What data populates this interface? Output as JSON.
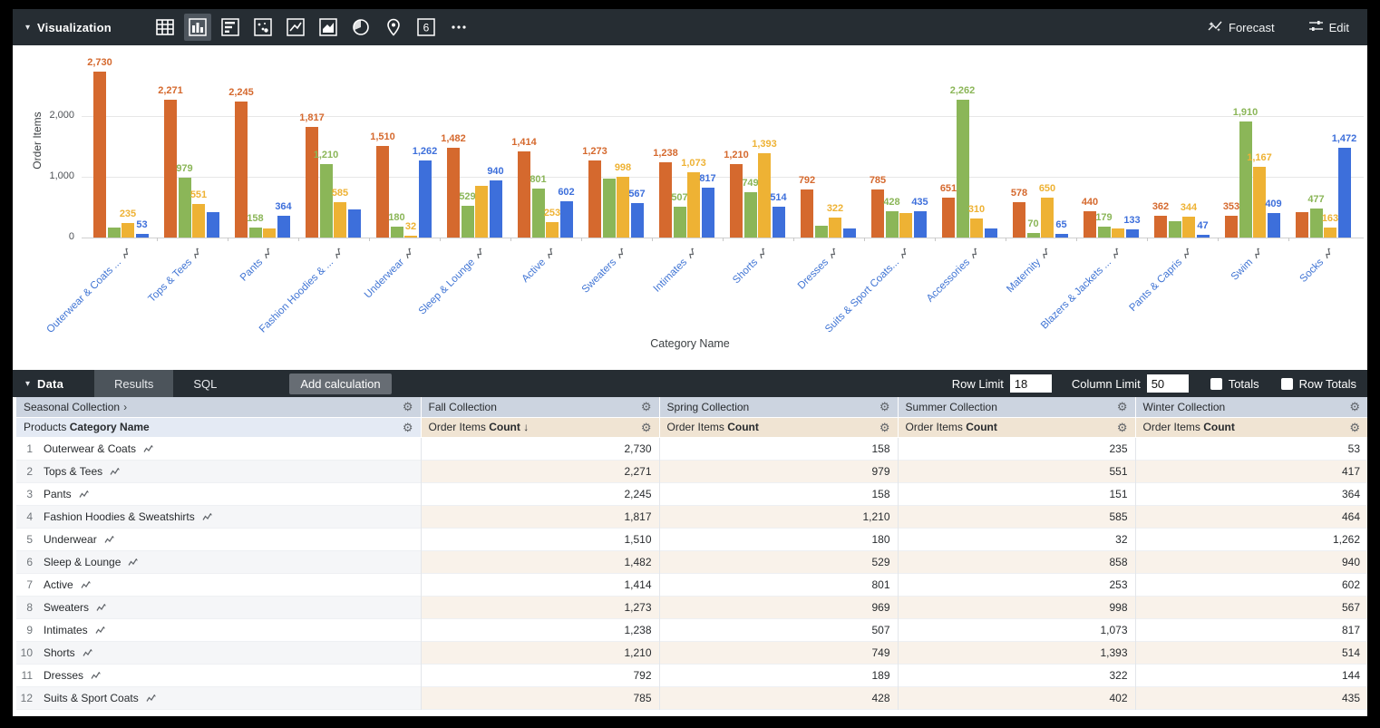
{
  "viz_toolbar": {
    "title": "Visualization",
    "icons": [
      {
        "name": "table-icon",
        "glyph": "table",
        "active": false
      },
      {
        "name": "column-chart-icon",
        "glyph": "column",
        "active": true
      },
      {
        "name": "bar-chart-icon",
        "glyph": "hbar",
        "active": false
      },
      {
        "name": "scatter-plot-icon",
        "glyph": "scatter",
        "active": false
      },
      {
        "name": "line-chart-icon",
        "glyph": "line",
        "active": false
      },
      {
        "name": "area-chart-icon",
        "glyph": "area",
        "active": false
      },
      {
        "name": "pie-chart-icon",
        "glyph": "pie",
        "active": false
      },
      {
        "name": "map-icon",
        "glyph": "pin",
        "active": false
      },
      {
        "name": "single-value-icon",
        "glyph": "six",
        "active": false
      },
      {
        "name": "more-vis-icon",
        "glyph": "more",
        "active": false
      }
    ],
    "forecast_label": "Forecast",
    "edit_label": "Edit"
  },
  "chart_data": {
    "type": "bar",
    "title": "",
    "xlabel": "Category Name",
    "ylabel": "Order Items",
    "ylim": [
      0,
      3100
    ],
    "yticks": [
      {
        "value": 0,
        "label": "0"
      },
      {
        "value": 1000,
        "label": "1,000"
      },
      {
        "value": 2000,
        "label": "2,000"
      }
    ],
    "grid": true,
    "legend_position": "none",
    "categories": [
      "Outerwear & Coats ...",
      "Tops & Tees",
      "Pants",
      "Fashion Hoodies & ...",
      "Underwear",
      "Sleep & Lounge",
      "Active",
      "Sweaters",
      "Intimates",
      "Shorts",
      "Dresses",
      "Suits & Sport Coats...",
      "Accessories",
      "Maternity",
      "Blazers & Jackets ...",
      "Pants & Capris",
      "Swim",
      "Socks"
    ],
    "series": [
      {
        "name": "Fall Collection",
        "color": "#d5692e",
        "values": [
          2730,
          2271,
          2245,
          1817,
          1510,
          1482,
          1414,
          1273,
          1238,
          1210,
          792,
          785,
          651,
          578,
          440,
          362,
          353,
          420
        ],
        "labels": [
          "2,730",
          "2,271",
          "2,245",
          "1,817",
          "1,510",
          "1,482",
          "1,414",
          "1,273",
          "1,238",
          "1,210",
          "792",
          "785",
          "651",
          "578",
          "440",
          "362",
          "353",
          null
        ]
      },
      {
        "name": "Spring Collection",
        "color": "#8bb658",
        "values": [
          158,
          979,
          158,
          1210,
          180,
          529,
          801,
          969,
          507,
          749,
          189,
          428,
          2262,
          70,
          179,
          270,
          1910,
          477
        ],
        "labels": [
          null,
          "979",
          "158",
          "1,210",
          "180",
          "529",
          "801",
          null,
          "507",
          "749",
          null,
          "428",
          "2,262",
          "70",
          "179",
          null,
          "1,910",
          "477"
        ]
      },
      {
        "name": "Summer Collection",
        "color": "#eeb234",
        "values": [
          235,
          551,
          151,
          585,
          32,
          858,
          253,
          998,
          1073,
          1393,
          322,
          402,
          310,
          650,
          150,
          344,
          1167,
          163
        ],
        "labels": [
          "235",
          "551",
          null,
          "585",
          "32",
          null,
          "253",
          "998",
          "1,073",
          "1,393",
          "322",
          null,
          "310",
          "650",
          null,
          "344",
          "1,167",
          "163"
        ]
      },
      {
        "name": "Winter Collection",
        "color": "#3d6fdb",
        "values": [
          53,
          417,
          364,
          464,
          1262,
          940,
          602,
          567,
          817,
          514,
          144,
          435,
          150,
          65,
          133,
          47,
          409,
          1472
        ],
        "labels": [
          "53",
          null,
          "364",
          null,
          "1,262",
          "940",
          "602",
          "567",
          "817",
          "514",
          null,
          "435",
          null,
          "65",
          "133",
          "47",
          "409",
          "1,472"
        ]
      }
    ]
  },
  "data_bar": {
    "title": "Data",
    "tabs": [
      {
        "label": "Results",
        "active": true
      },
      {
        "label": "SQL",
        "active": false
      }
    ],
    "add_calculation_label": "Add calculation",
    "row_limit_label": "Row Limit",
    "row_limit_value": "18",
    "column_limit_label": "Column Limit",
    "column_limit_value": "50",
    "totals_label": "Totals",
    "row_totals_label": "Row Totals"
  },
  "table": {
    "pivot_dimension_header": "Seasonal Collection",
    "dimension_header_prefix": "Products",
    "dimension_header_name": "Category Name",
    "measure_header_prefix": "Order Items",
    "measure_header_name": "Count",
    "sort_arrow": "↓",
    "pivot_values": [
      "Fall Collection",
      "Spring Collection",
      "Summer Collection",
      "Winter Collection"
    ],
    "rows": [
      {
        "num": "1",
        "name": "Outerwear & Coats",
        "values": [
          "2,730",
          "158",
          "235",
          "53"
        ]
      },
      {
        "num": "2",
        "name": "Tops & Tees",
        "values": [
          "2,271",
          "979",
          "551",
          "417"
        ]
      },
      {
        "num": "3",
        "name": "Pants",
        "values": [
          "2,245",
          "158",
          "151",
          "364"
        ]
      },
      {
        "num": "4",
        "name": "Fashion Hoodies & Sweatshirts",
        "values": [
          "1,817",
          "1,210",
          "585",
          "464"
        ]
      },
      {
        "num": "5",
        "name": "Underwear",
        "values": [
          "1,510",
          "180",
          "32",
          "1,262"
        ]
      },
      {
        "num": "6",
        "name": "Sleep & Lounge",
        "values": [
          "1,482",
          "529",
          "858",
          "940"
        ]
      },
      {
        "num": "7",
        "name": "Active",
        "values": [
          "1,414",
          "801",
          "253",
          "602"
        ]
      },
      {
        "num": "8",
        "name": "Sweaters",
        "values": [
          "1,273",
          "969",
          "998",
          "567"
        ]
      },
      {
        "num": "9",
        "name": "Intimates",
        "values": [
          "1,238",
          "507",
          "1,073",
          "817"
        ]
      },
      {
        "num": "10",
        "name": "Shorts",
        "values": [
          "1,210",
          "749",
          "1,393",
          "514"
        ]
      },
      {
        "num": "11",
        "name": "Dresses",
        "values": [
          "792",
          "189",
          "322",
          "144"
        ]
      },
      {
        "num": "12",
        "name": "Suits & Sport Coats",
        "values": [
          "785",
          "428",
          "402",
          "435"
        ]
      }
    ]
  }
}
